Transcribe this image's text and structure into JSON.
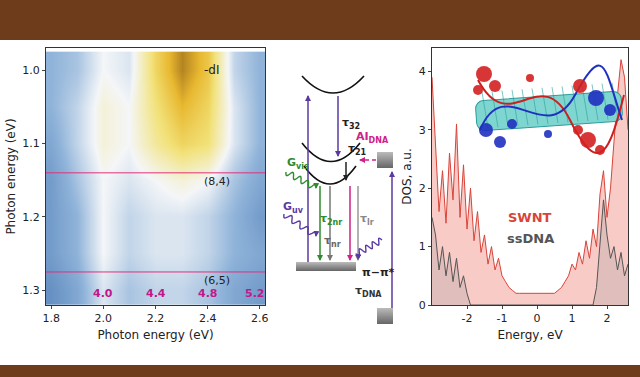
{
  "chart_data": [
    {
      "type": "heatmap",
      "xlabel": "Photon energy (eV)",
      "ylabel": "Photon energy (eV)",
      "x": [
        1.8,
        1.9,
        2.0,
        2.1,
        2.2,
        2.3,
        2.4,
        2.5,
        2.6
      ],
      "y": [
        1.0,
        1.05,
        1.1,
        1.15,
        1.2,
        1.25,
        1.3
      ],
      "z": [
        [
          0.3,
          0.35,
          0.5,
          0.45,
          0.75,
          0.95,
          0.8,
          0.4,
          0.3
        ],
        [
          0.3,
          0.4,
          0.55,
          0.5,
          0.7,
          0.85,
          0.75,
          0.45,
          0.3
        ],
        [
          0.25,
          0.4,
          0.55,
          0.5,
          0.65,
          0.75,
          0.7,
          0.45,
          0.3
        ],
        [
          0.2,
          0.35,
          0.5,
          0.45,
          0.5,
          0.55,
          0.5,
          0.35,
          0.25
        ],
        [
          0.2,
          0.3,
          0.5,
          0.4,
          0.45,
          0.45,
          0.4,
          0.3,
          0.2
        ],
        [
          0.2,
          0.3,
          0.5,
          0.4,
          0.45,
          0.45,
          0.4,
          0.3,
          0.25
        ],
        [
          0.15,
          0.25,
          0.45,
          0.35,
          0.4,
          0.4,
          0.35,
          0.25,
          0.2
        ]
      ],
      "zlim": [
        0,
        1
      ],
      "xlim": [
        1.78,
        2.62
      ],
      "ylim": [
        1.32,
        0.97
      ],
      "xticks": [
        1.8,
        {
          "value": 2,
          "label": "2.0"
        },
        2.2,
        2.4,
        2.6
      ],
      "yticks": [
        {
          "value": 1,
          "label": "1.0"
        },
        1.1,
        1.2,
        1.3
      ],
      "annotations": [
        {
          "text": "-dI",
          "x": 2.38,
          "y": 1.0
        }
      ],
      "lines": [
        {
          "y": 1.14,
          "label": "(8,4)",
          "color": "#e0307a"
        },
        {
          "y": 1.275,
          "label": "(6,5)",
          "color": "#e0307a"
        }
      ],
      "energy_labels": {
        "color": "#c0188a",
        "items": [
          {
            "x": 2.0,
            "label": "4.0"
          },
          {
            "x": 2.2,
            "label": "4.4"
          },
          {
            "x": 2.4,
            "label": "4.8"
          },
          {
            "x": 2.58,
            "label": "5.2"
          }
        ]
      }
    },
    {
      "type": "area",
      "xlabel": "Energy, eV",
      "ylabel": "DOS, a.u.",
      "x": [
        -3,
        -2.9,
        -2.8,
        -2.7,
        -2.6,
        -2.5,
        -2.4,
        -2.3,
        -2.2,
        -2.1,
        -2,
        -1.9,
        -1.8,
        -1.7,
        -1.6,
        -1.5,
        -1.4,
        -1.3,
        -1.2,
        -1.1,
        -1,
        -0.9,
        -0.8,
        -0.7,
        -0.6,
        -0.5,
        -0.4,
        -0.3,
        -0.2,
        -0.1,
        0,
        0.1,
        0.2,
        0.3,
        0.4,
        0.5,
        0.6,
        0.7,
        0.8,
        0.9,
        1,
        1.1,
        1.2,
        1.3,
        1.4,
        1.5,
        1.6,
        1.7,
        1.8,
        1.9,
        2,
        2.1,
        2.2,
        2.3,
        2.4,
        2.5,
        2.6
      ],
      "series": [
        {
          "name": "SWNT",
          "color": "#d9443a",
          "values": [
            3.9,
            2.8,
            1.6,
            2.3,
            1.4,
            2.6,
            1.8,
            3.1,
            1.5,
            2.4,
            1.3,
            2.0,
            1.1,
            1.6,
            0.9,
            1.2,
            0.7,
            1.0,
            0.6,
            0.8,
            0.5,
            0.4,
            0.3,
            0.25,
            0.2,
            0.2,
            0.2,
            0.2,
            0.2,
            0.2,
            0.2,
            0.2,
            0.2,
            0.2,
            0.2,
            0.2,
            0.25,
            0.3,
            0.4,
            0.5,
            0.7,
            0.6,
            0.9,
            0.7,
            1.1,
            0.8,
            1.3,
            1.0,
            1.9,
            2.3,
            1.5,
            2.0,
            2.8,
            3.6,
            4.2,
            3.9,
            3.0
          ]
        },
        {
          "name": "ssDNA",
          "color": "#555555",
          "values": [
            1.5,
            1.2,
            0.6,
            1.0,
            0.5,
            0.9,
            0.4,
            0.8,
            0.3,
            0.5,
            0.2,
            0,
            0,
            0,
            0,
            0,
            0,
            0,
            0,
            0,
            0,
            0,
            0,
            0,
            0,
            0,
            0,
            0,
            0,
            0,
            0,
            0,
            0,
            0,
            0,
            0,
            0,
            0,
            0,
            0,
            0,
            0,
            0,
            0,
            0,
            0,
            0,
            0.3,
            1.0,
            1.8,
            1.2,
            0.8,
            1.0,
            0.6,
            0.9,
            0.5,
            0.7
          ]
        }
      ],
      "xlim": [
        -3,
        2.6
      ],
      "ylim": [
        0,
        4.4
      ],
      "xticks": [
        -2,
        -1,
        0,
        1,
        2
      ],
      "yticks": [
        0,
        1,
        2,
        3,
        4
      ]
    }
  ],
  "diagram": {
    "labels": [
      {
        "text": "τ",
        "sub": "32",
        "color": "#222222"
      },
      {
        "text": "τ",
        "sub": "21",
        "color": "#222222"
      },
      {
        "text": "AI",
        "sub": "DNA",
        "color": "#d0208a"
      },
      {
        "text": "G",
        "sub": "vis",
        "color": "#2e8b2e"
      },
      {
        "text": "G",
        "sub": "uv",
        "color": "#5a3aa0"
      },
      {
        "text": "τ",
        "sub": "2nr",
        "color": "#2e8b2e"
      },
      {
        "text": "τ",
        "sub": "nr",
        "color": "#666666"
      },
      {
        "text": "τ",
        "sub": "lr",
        "color": "#888888"
      },
      {
        "text": "π−π*",
        "sub": "",
        "color": "#222222"
      },
      {
        "text": "τ",
        "sub": "DNA",
        "color": "#333333"
      }
    ]
  }
}
